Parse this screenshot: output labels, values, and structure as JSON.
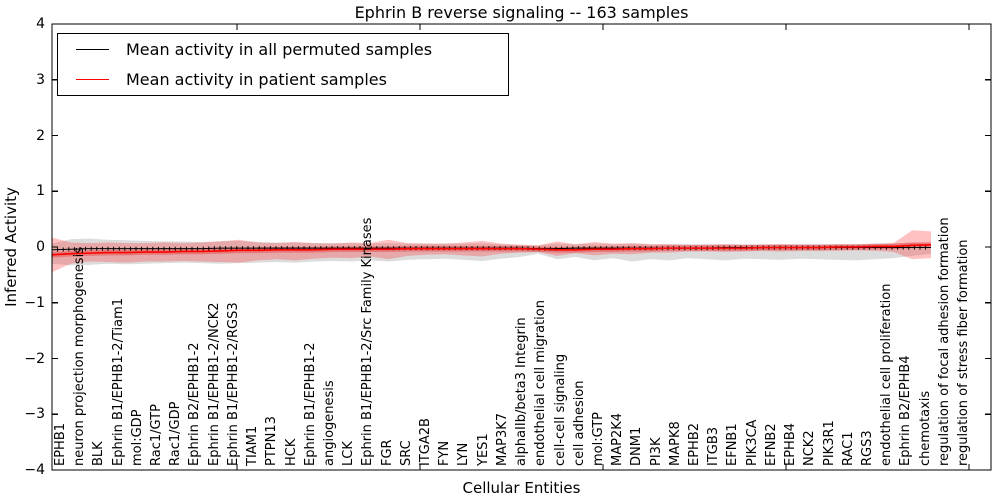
{
  "title": "Ephrin B reverse signaling -- 163 samples",
  "axes": {
    "ylabel": "Inferred Activity",
    "xlabel": "Cellular Entities",
    "ytick_labels": [
      "4",
      "3",
      "2",
      "1",
      "0",
      "−1",
      "−2",
      "−3",
      "−4"
    ],
    "ytick_values": [
      4,
      3,
      2,
      1,
      0,
      -1,
      -2,
      -3,
      -4
    ]
  },
  "legend": {
    "items": [
      {
        "label": "Mean activity in all permuted samples",
        "color": "#000000"
      },
      {
        "label": "Mean activity in patient samples",
        "color": "#ff0000"
      }
    ]
  },
  "colors": {
    "permuted_line": "#000000",
    "patient_line": "#ff0000",
    "permuted_band": "rgba(140,140,140,0.30)",
    "patient_band": "rgba(255,50,50,0.30)",
    "patient_band_inner": "rgba(225,0,0,0.28)"
  },
  "chart_data": {
    "type": "line",
    "title": "Ephrin B reverse signaling -- 163 samples",
    "xlabel": "Cellular Entities",
    "ylabel": "Inferred Activity",
    "ylim": [
      -4,
      4
    ],
    "grid": false,
    "legend_position": "upper left",
    "categories": [
      "EPHB1",
      "neuron projection morphogenesis",
      "BLK",
      "Ephrin B1/EPHB1-2/Tiam1",
      "mol:GDP",
      "Rac1/GTP",
      "Rac1/GDP",
      "Ephrin B2/EPHB1-2",
      "Ephrin B1/EPHB1-2/NCK2",
      "Ephrin B1/EPHB1-2/RGS3",
      "TIAM1",
      "PTPN13",
      "HCK",
      "Ephrin B1/EPHB1-2",
      "angiogenesis",
      "LCK",
      "Ephrin B1/EPHB1-2/Src Family Kinases",
      "FGR",
      "SRC",
      "ITGA2B",
      "FYN",
      "LYN",
      "YES1",
      "MAP3K7",
      "alphaIIb/beta3 Integrin",
      "endothelial cell migration",
      "cell-cell signaling",
      "cell adhesion",
      "mol:GTP",
      "MAP2K4",
      "DNM1",
      "PI3K",
      "MAPK8",
      "EPHB2",
      "ITGB3",
      "EFNB1",
      "PIK3CA",
      "EFNB2",
      "EPHB4",
      "NCK2",
      "PIK3R1",
      "RAC1",
      "RGS3",
      "endothelial cell proliferation",
      "Ephrin B2/EPHB4",
      "chemotaxis",
      "regulation of focal adhesion formation",
      "regulation of stress fiber formation"
    ],
    "series": [
      {
        "name": "Mean activity in all permuted samples",
        "values": [
          -0.05,
          -0.04,
          -0.03,
          -0.03,
          -0.03,
          -0.03,
          -0.03,
          -0.03,
          -0.03,
          -0.02,
          -0.02,
          -0.02,
          -0.02,
          -0.02,
          -0.02,
          -0.02,
          -0.02,
          -0.02,
          -0.02,
          -0.02,
          -0.02,
          -0.02,
          -0.02,
          -0.02,
          -0.02,
          -0.02,
          -0.03,
          -0.03,
          -0.02,
          -0.02,
          -0.02,
          -0.02,
          -0.02,
          -0.02,
          -0.02,
          -0.02,
          -0.01,
          -0.01,
          -0.01,
          -0.01,
          -0.01,
          -0.01,
          -0.01,
          -0.01,
          -0.01,
          -0.01,
          -0.01,
          -0.01
        ]
      },
      {
        "name": "Mean activity in patient samples",
        "values": [
          -0.14,
          -0.12,
          -0.11,
          -0.1,
          -0.1,
          -0.09,
          -0.09,
          -0.08,
          -0.08,
          -0.07,
          -0.06,
          -0.06,
          -0.05,
          -0.05,
          -0.05,
          -0.04,
          -0.04,
          -0.04,
          -0.04,
          -0.03,
          -0.03,
          -0.03,
          -0.03,
          -0.03,
          -0.03,
          -0.03,
          -0.04,
          -0.05,
          -0.05,
          -0.04,
          -0.04,
          -0.03,
          -0.03,
          -0.02,
          -0.02,
          -0.02,
          -0.02,
          -0.02,
          -0.01,
          -0.01,
          -0.01,
          -0.01,
          0.0,
          0.0,
          0.01,
          0.01,
          0.03,
          0.04
        ]
      }
    ],
    "bands": [
      {
        "name": "permuted-band",
        "upper": [
          0.06,
          0.14,
          0.15,
          0.13,
          0.12,
          0.11,
          0.1,
          0.1,
          0.09,
          0.1,
          0.11,
          0.09,
          0.08,
          0.08,
          0.07,
          0.07,
          0.07,
          0.06,
          0.07,
          0.06,
          0.06,
          0.06,
          0.06,
          0.07,
          0.05,
          0.04,
          0.03,
          0.06,
          0.05,
          0.06,
          0.05,
          0.06,
          0.05,
          0.05,
          0.05,
          0.05,
          0.05,
          0.05,
          0.05,
          0.05,
          0.05,
          0.05,
          0.05,
          0.05,
          0.06,
          0.06,
          0.08,
          0.06
        ],
        "lower": [
          -0.3,
          -0.33,
          -0.32,
          -0.3,
          -0.31,
          -0.3,
          -0.29,
          -0.28,
          -0.29,
          -0.3,
          -0.29,
          -0.28,
          -0.27,
          -0.28,
          -0.26,
          -0.25,
          -0.26,
          -0.24,
          -0.26,
          -0.23,
          -0.22,
          -0.21,
          -0.23,
          -0.25,
          -0.21,
          -0.18,
          -0.12,
          -0.22,
          -0.18,
          -0.24,
          -0.2,
          -0.26,
          -0.22,
          -0.24,
          -0.2,
          -0.22,
          -0.24,
          -0.21,
          -0.22,
          -0.23,
          -0.21,
          -0.22,
          -0.23,
          -0.24,
          -0.22,
          -0.2,
          -0.16,
          -0.12
        ]
      },
      {
        "name": "patient-band",
        "upper": [
          0.17,
          0.08,
          0.07,
          0.08,
          0.07,
          0.07,
          0.08,
          0.07,
          0.08,
          0.1,
          0.13,
          0.08,
          0.07,
          0.09,
          0.07,
          0.06,
          0.08,
          0.07,
          0.13,
          0.07,
          0.06,
          0.06,
          0.08,
          0.11,
          0.06,
          0.04,
          0.03,
          0.1,
          0.05,
          0.09,
          0.06,
          0.07,
          0.05,
          0.05,
          0.04,
          0.04,
          0.05,
          0.04,
          0.04,
          0.05,
          0.04,
          0.04,
          0.04,
          0.04,
          0.05,
          0.07,
          0.3,
          0.28
        ],
        "lower": [
          -0.45,
          -0.3,
          -0.26,
          -0.27,
          -0.28,
          -0.26,
          -0.26,
          -0.25,
          -0.26,
          -0.27,
          -0.28,
          -0.24,
          -0.22,
          -0.24,
          -0.21,
          -0.19,
          -0.2,
          -0.17,
          -0.22,
          -0.16,
          -0.14,
          -0.13,
          -0.15,
          -0.17,
          -0.12,
          -0.1,
          -0.09,
          -0.16,
          -0.11,
          -0.15,
          -0.12,
          -0.13,
          -0.1,
          -0.1,
          -0.08,
          -0.08,
          -0.09,
          -0.08,
          -0.07,
          -0.08,
          -0.07,
          -0.07,
          -0.07,
          -0.06,
          -0.07,
          -0.09,
          -0.22,
          -0.2
        ]
      },
      {
        "name": "patient-band-inner",
        "half_width": 0.05
      }
    ]
  }
}
